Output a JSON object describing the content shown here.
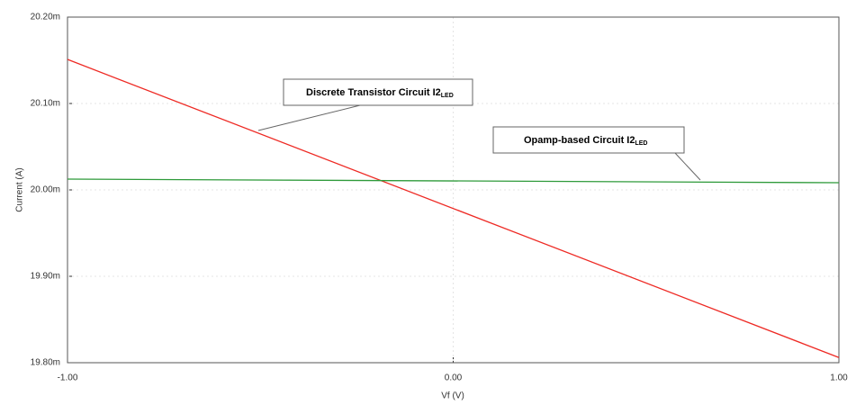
{
  "chart_data": {
    "type": "line",
    "x": [
      -1.0,
      1.0
    ],
    "series": [
      {
        "color": "#ee2a24",
        "values": [
          20.151,
          19.806
        ]
      },
      {
        "color": "#2e9a3a",
        "values": [
          20.0125,
          20.0083
        ]
      }
    ],
    "xlim": [
      -1.0,
      1.0
    ],
    "xticks": [
      {
        "value": -1.0,
        "label": "-1.00"
      },
      {
        "value": 0.0,
        "label": "0.00"
      },
      {
        "value": 1.0,
        "label": "1.00"
      }
    ],
    "ylim": [
      19.8,
      20.2
    ],
    "yticks": [
      {
        "value": 19.8,
        "label": "19.80m"
      },
      {
        "value": 19.9,
        "label": "19.90m"
      },
      {
        "value": 20.0,
        "label": "20.00m"
      },
      {
        "value": 20.1,
        "label": "20.10m"
      },
      {
        "value": 20.2,
        "label": "20.20m"
      }
    ],
    "xlabel": "Vf (V)",
    "ylabel": "Current (A)",
    "grid": true,
    "annotations": [
      {
        "text": "Discrete Transistor Circuit  I2",
        "subscript": "LED"
      },
      {
        "text": "Opamp-based Circuit  I2",
        "subscript": "LED"
      }
    ]
  }
}
